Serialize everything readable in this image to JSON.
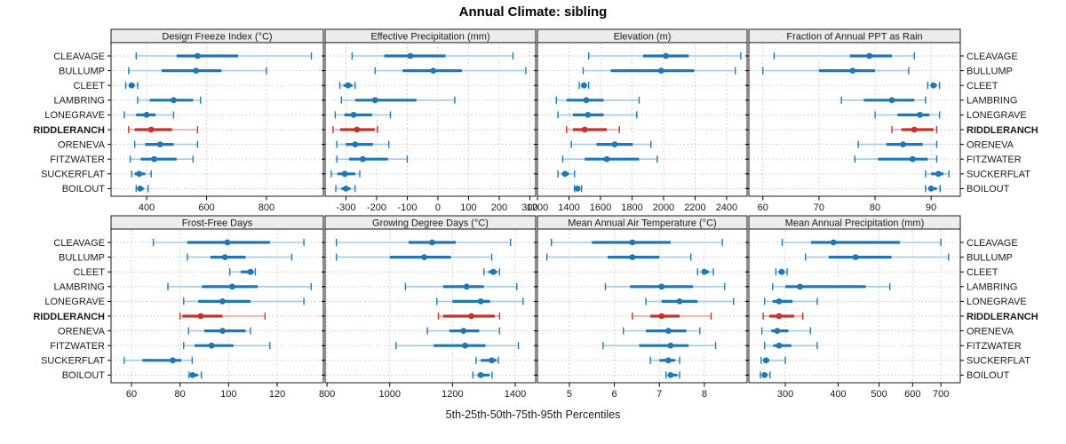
{
  "colors": {
    "series_main": "#1f77b4",
    "series_light": "#a6cbe3",
    "highlight_main": "#c5332b",
    "highlight_light": "#e9a49e",
    "strip_bg": "#ececec",
    "panel_border": "#000000",
    "grid": "#c2c2c2",
    "text": "#1a1a1a"
  },
  "chart_data": {
    "type": "dotplot",
    "title": "Annual Climate: sibling",
    "caption": "5th-25th-50th-75th-95th Percentiles",
    "percentiles": [
      5,
      25,
      50,
      75,
      95
    ],
    "legend_position": "none",
    "grid": true,
    "locations": [
      "CLEAVAGE",
      "BULLUMP",
      "CLEET",
      "LAMBRING",
      "LONEGRAVE",
      "RIDDLERANCH",
      "ORENEVA",
      "FITZWATER",
      "SUCKERFLAT",
      "BOILOUT"
    ],
    "highlighted_location": "RIDDLERANCH",
    "panels": [
      {
        "label": "Design Freeze Index (°C)",
        "row": 0,
        "col": 0,
        "scale": "linear",
        "xlim": [
          281,
          990
        ],
        "ticks": [
          400,
          600,
          800
        ],
        "values": {
          "CLEAVAGE": [
            365,
            500,
            570,
            705,
            950
          ],
          "BULLUMP": [
            340,
            450,
            565,
            650,
            800
          ],
          "CLEET": [
            330,
            340,
            350,
            360,
            370
          ],
          "LAMBRING": [
            370,
            410,
            490,
            555,
            580
          ],
          "LONEGRAVE": [
            325,
            365,
            400,
            430,
            490
          ],
          "RIDDLERANCH": [
            340,
            360,
            415,
            485,
            570
          ],
          "ORENEVA": [
            360,
            395,
            445,
            490,
            570
          ],
          "FITZWATER": [
            345,
            380,
            425,
            500,
            555
          ],
          "SUCKERFLAT": [
            350,
            360,
            375,
            395,
            415
          ],
          "BOILOUT": [
            365,
            370,
            378,
            390,
            405
          ]
        }
      },
      {
        "label": "Effective Precipitation (mm)",
        "row": 0,
        "col": 1,
        "scale": "linear",
        "xlim": [
          -368,
          319
        ],
        "ticks": [
          -300,
          -200,
          -100,
          0,
          100,
          200,
          300
        ],
        "values": {
          "CLEAVAGE": [
            -280,
            -175,
            -90,
            25,
            245
          ],
          "BULLUMP": [
            -205,
            -115,
            -15,
            78,
            287
          ],
          "CLEET": [
            -320,
            -308,
            -293,
            -279,
            -270
          ],
          "LAMBRING": [
            -315,
            -270,
            -205,
            -70,
            55
          ],
          "LONEGRAVE": [
            -335,
            -305,
            -275,
            -215,
            -155
          ],
          "RIDDLERANCH": [
            -342,
            -319,
            -264,
            -206,
            -197
          ],
          "ORENEVA": [
            -330,
            -300,
            -270,
            -212,
            -160
          ],
          "FITZWATER": [
            -330,
            -290,
            -245,
            -163,
            -100
          ],
          "SUCKERFLAT": [
            -348,
            -328,
            -304,
            -270,
            -255
          ],
          "BOILOUT": [
            -333,
            -315,
            -300,
            -285,
            -270
          ]
        }
      },
      {
        "label": "Elevation (m)",
        "row": 0,
        "col": 2,
        "scale": "linear",
        "xlim": [
          1200,
          2530
        ],
        "ticks": [
          1200,
          1400,
          1600,
          1800,
          2000,
          2200,
          2400
        ],
        "values": {
          "CLEAVAGE": [
            1525,
            1870,
            2015,
            2160,
            2490
          ],
          "BULLUMP": [
            1490,
            1665,
            1985,
            2195,
            2455
          ],
          "CLEET": [
            1465,
            1480,
            1495,
            1510,
            1525
          ],
          "LAMBRING": [
            1320,
            1385,
            1510,
            1620,
            1845
          ],
          "LONEGRAVE": [
            1330,
            1425,
            1520,
            1620,
            1830
          ],
          "RIDDLERANCH": [
            1385,
            1425,
            1500,
            1640,
            1720
          ],
          "ORENEVA": [
            1415,
            1575,
            1690,
            1805,
            1920
          ],
          "FITZWATER": [
            1360,
            1500,
            1640,
            1845,
            1960
          ],
          "SUCKERFLAT": [
            1330,
            1355,
            1375,
            1400,
            1435
          ],
          "BOILOUT": [
            1435,
            1445,
            1455,
            1465,
            1480
          ]
        }
      },
      {
        "label": "Fraction of Annual PPT as Rain",
        "row": 0,
        "col": 3,
        "scale": "linear",
        "xlim": [
          57.5,
          95.2
        ],
        "ticks": [
          60,
          70,
          80,
          90
        ],
        "values": {
          "CLEAVAGE": [
            62,
            75.5,
            79,
            83,
            87
          ],
          "BULLUMP": [
            60,
            70,
            76,
            80,
            86
          ],
          "CLEET": [
            89.4,
            90,
            90.4,
            91,
            91.5
          ],
          "LAMBRING": [
            74,
            78,
            83,
            87,
            89
          ],
          "LONEGRAVE": [
            80,
            84,
            88,
            89.7,
            91.5
          ],
          "RIDDLERANCH": [
            83,
            84.7,
            87,
            90.4,
            91
          ],
          "ORENEVA": [
            77,
            82,
            85,
            88.5,
            91
          ],
          "FITZWATER": [
            76.4,
            80.5,
            86.7,
            89.4,
            91
          ],
          "SUCKERFLAT": [
            89,
            90,
            91.3,
            92.2,
            93.2
          ],
          "BOILOUT": [
            89,
            89.5,
            90,
            91,
            91.6
          ]
        }
      },
      {
        "label": "Frost-Free Days",
        "row": 1,
        "col": 0,
        "scale": "linear",
        "xlim": [
          51.6,
          139
        ],
        "ticks": [
          60,
          80,
          100,
          120
        ],
        "values": {
          "CLEAVAGE": [
            69,
            83,
            99.5,
            117,
            131
          ],
          "BULLUMP": [
            83,
            92.5,
            98.5,
            107,
            126
          ],
          "CLEET": [
            100.5,
            105,
            109,
            110.4,
            111
          ],
          "LAMBRING": [
            75,
            89,
            101.5,
            112,
            134
          ],
          "LONEGRAVE": [
            81.5,
            87.5,
            97.5,
            109,
            131
          ],
          "RIDDLERANCH": [
            80,
            81,
            88.5,
            97.5,
            115
          ],
          "ORENEVA": [
            83.5,
            90,
            97.5,
            107,
            109
          ],
          "FITZWATER": [
            81.5,
            86,
            93,
            102,
            117
          ],
          "SUCKERFLAT": [
            57,
            64.5,
            77,
            80.5,
            85
          ],
          "BOILOUT": [
            83.7,
            84.2,
            85.2,
            87.4,
            88.8
          ]
        }
      },
      {
        "label": "Growing Degree Days (°C)",
        "row": 1,
        "col": 1,
        "scale": "linear",
        "xlim": [
          794,
          1465
        ],
        "ticks": [
          800,
          1000,
          1200,
          1400
        ],
        "values": {
          "CLEAVAGE": [
            830,
            1060,
            1135,
            1210,
            1385
          ],
          "BULLUMP": [
            830,
            1000,
            1110,
            1195,
            1325
          ],
          "CLEET": [
            1300,
            1315,
            1330,
            1342,
            1350
          ],
          "LAMBRING": [
            1050,
            1170,
            1245,
            1300,
            1405
          ],
          "LONEGRAVE": [
            1150,
            1200,
            1290,
            1320,
            1425
          ],
          "RIDDLERANCH": [
            1155,
            1170,
            1260,
            1335,
            1350
          ],
          "ORENEVA": [
            1120,
            1190,
            1235,
            1285,
            1350
          ],
          "FITZWATER": [
            1020,
            1140,
            1240,
            1305,
            1410
          ],
          "SUCKERFLAT": [
            1275,
            1290,
            1325,
            1340,
            1346
          ],
          "BOILOUT": [
            1265,
            1280,
            1290,
            1318,
            1326
          ]
        }
      },
      {
        "label": "Mean Annual Air Temperature (°C)",
        "row": 1,
        "col": 2,
        "scale": "linear",
        "xlim": [
          4.29,
          8.95
        ],
        "ticks": [
          5,
          6,
          7,
          8
        ],
        "values": {
          "CLEAVAGE": [
            4.6,
            5.5,
            6.4,
            7.25,
            8.4
          ],
          "BULLUMP": [
            4.5,
            5.85,
            6.4,
            7.0,
            7.7
          ],
          "CLEET": [
            7.85,
            7.95,
            8.0,
            8.1,
            8.2
          ],
          "LAMBRING": [
            5.8,
            6.35,
            7.05,
            7.75,
            8.45
          ],
          "LONEGRAVE": [
            6.7,
            7.05,
            7.45,
            7.85,
            8.65
          ],
          "RIDDLERANCH": [
            6.4,
            6.8,
            7.05,
            7.45,
            8.15
          ],
          "ORENEVA": [
            6.2,
            6.7,
            7.2,
            7.6,
            7.9
          ],
          "FITZWATER": [
            5.75,
            6.55,
            7.25,
            7.65,
            8.25
          ],
          "SUCKERFLAT": [
            6.8,
            7.0,
            7.2,
            7.35,
            7.45
          ],
          "BOILOUT": [
            7.15,
            7.2,
            7.25,
            7.4,
            7.45
          ]
        }
      },
      {
        "label": "Mean Annual Precipitation (mm)",
        "row": 1,
        "col": 3,
        "scale": "log",
        "xlim": [
          246,
          778
        ],
        "ticks": [
          300,
          400,
          500,
          600,
          700
        ],
        "values": {
          "CLEAVAGE": [
            295,
            345,
            390,
            560,
            700
          ],
          "BULLUMP": [
            335,
            380,
            440,
            535,
            730
          ],
          "CLEET": [
            285,
            290,
            294,
            299,
            303
          ],
          "LAMBRING": [
            280,
            300,
            325,
            465,
            530
          ],
          "LONEGRAVE": [
            268,
            280,
            290,
            312,
            357
          ],
          "RIDDLERANCH": [
            266,
            275,
            290,
            315,
            330
          ],
          "ORENEVA": [
            264,
            278,
            287,
            305,
            344
          ],
          "FITZWATER": [
            268,
            281,
            290,
            310,
            357
          ],
          "SUCKERFLAT": [
            263,
            266,
            270,
            275,
            300
          ],
          "BOILOUT": [
            262,
            265,
            268,
            271,
            276
          ]
        }
      }
    ]
  }
}
